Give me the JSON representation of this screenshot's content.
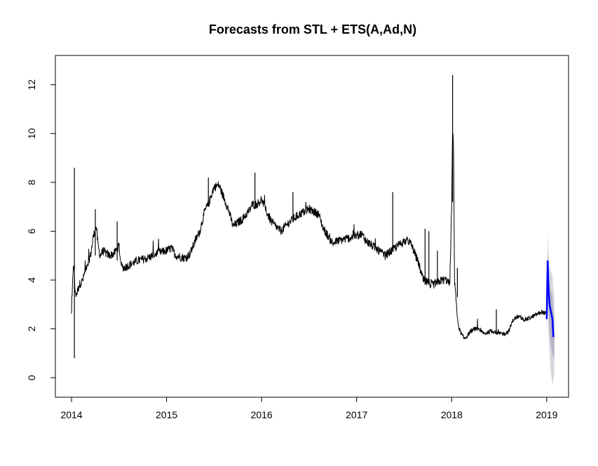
{
  "chart_data": {
    "type": "line",
    "title": "Forecasts from STL +  ETS(A,Ad,N)",
    "xlabel": "",
    "ylabel": "",
    "xlim": [
      2013.83,
      2019.23
    ],
    "ylim": [
      -0.8,
      13.2
    ],
    "x_ticks": [
      2014,
      2015,
      2016,
      2017,
      2018,
      2019
    ],
    "x_tick_labels": [
      "2014",
      "2015",
      "2016",
      "2017",
      "2018",
      "2019"
    ],
    "y_ticks": [
      0,
      2,
      4,
      6,
      8,
      10,
      12
    ],
    "y_tick_labels": [
      "0",
      "2",
      "4",
      "6",
      "8",
      "10",
      "12"
    ],
    "grid": false,
    "legend": "none",
    "colors": {
      "observed": "#000000",
      "forecast": "#0000ff",
      "interval_95": "#d6d6de",
      "interval_80": "#b4b4c6"
    },
    "observed": {
      "x": [
        2014.0,
        2014.02,
        2014.04,
        2014.06,
        2014.08,
        2014.1,
        2014.12,
        2014.15,
        2014.18,
        2014.2,
        2014.23,
        2014.26,
        2014.28,
        2014.3,
        2014.33,
        2014.36,
        2014.4,
        2014.45,
        2014.5,
        2014.52,
        2014.55,
        2014.6,
        2014.7,
        2014.8,
        2014.9,
        2015.0,
        2015.05,
        2015.1,
        2015.2,
        2015.25,
        2015.3,
        2015.35,
        2015.4,
        2015.45,
        2015.48,
        2015.5,
        2015.55,
        2015.6,
        2015.65,
        2015.7,
        2015.8,
        2015.88,
        2015.9,
        2015.95,
        2016.0,
        2016.05,
        2016.1,
        2016.15,
        2016.2,
        2016.3,
        2016.4,
        2016.45,
        2016.5,
        2016.55,
        2016.6,
        2016.65,
        2016.7,
        2016.75,
        2016.8,
        2016.9,
        2017.0,
        2017.05,
        2017.1,
        2017.2,
        2017.3,
        2017.4,
        2017.5,
        2017.55,
        2017.58,
        2017.6,
        2017.65,
        2017.7,
        2017.75,
        2017.8,
        2017.85,
        2017.9,
        2017.95,
        2017.98,
        2018.0,
        2018.01,
        2018.02,
        2018.03,
        2018.04,
        2018.06,
        2018.08,
        2018.1,
        2018.13,
        2018.16,
        2018.2,
        2018.25,
        2018.3,
        2018.35,
        2018.4,
        2018.45,
        2018.5,
        2018.55,
        2018.6,
        2018.62,
        2018.65,
        2018.7,
        2018.75,
        2018.8,
        2018.85,
        2018.9,
        2018.95,
        2019.0
      ],
      "y": [
        2.6,
        4.8,
        3.4,
        3.5,
        3.8,
        3.9,
        4.0,
        4.5,
        4.8,
        5.0,
        5.8,
        6.2,
        5.4,
        5.0,
        5.2,
        5.1,
        5.0,
        5.1,
        5.4,
        4.6,
        4.5,
        4.6,
        4.8,
        4.9,
        5.1,
        5.2,
        5.3,
        5.0,
        4.9,
        5.1,
        5.6,
        6.0,
        6.8,
        7.2,
        7.6,
        7.8,
        7.9,
        7.4,
        6.9,
        6.2,
        6.5,
        6.9,
        7.1,
        7.1,
        7.3,
        6.8,
        6.4,
        6.2,
        6.0,
        6.4,
        6.7,
        6.8,
        6.9,
        6.8,
        6.7,
        6.1,
        5.8,
        5.5,
        5.6,
        5.7,
        5.8,
        5.9,
        5.6,
        5.3,
        5.0,
        5.3,
        5.6,
        5.6,
        5.4,
        5.2,
        4.7,
        4.0,
        3.9,
        3.8,
        3.9,
        4.0,
        4.0,
        3.8,
        7.0,
        10.2,
        9.5,
        4.0,
        3.6,
        2.4,
        2.0,
        1.8,
        1.6,
        1.7,
        1.9,
        2.0,
        1.9,
        1.8,
        1.9,
        1.9,
        1.8,
        1.8,
        1.9,
        2.1,
        2.4,
        2.5,
        2.4,
        2.4,
        2.5,
        2.6,
        2.7,
        2.6
      ]
    },
    "spikes": [
      {
        "x": 2014.03,
        "low": 0.8,
        "high": 8.6
      },
      {
        "x": 2014.25,
        "low": 5.0,
        "high": 6.9
      },
      {
        "x": 2014.48,
        "low": 4.8,
        "high": 6.4
      },
      {
        "x": 2015.44,
        "low": 7.0,
        "high": 8.2
      },
      {
        "x": 2015.93,
        "low": 6.9,
        "high": 8.4
      },
      {
        "x": 2016.33,
        "low": 6.5,
        "high": 7.6
      },
      {
        "x": 2017.38,
        "low": 5.3,
        "high": 7.6
      },
      {
        "x": 2017.72,
        "low": 3.8,
        "high": 6.1
      },
      {
        "x": 2017.76,
        "low": 3.8,
        "high": 6.0
      },
      {
        "x": 2017.85,
        "low": 3.8,
        "high": 5.2
      },
      {
        "x": 2018.01,
        "low": 7.2,
        "high": 12.4
      },
      {
        "x": 2018.06,
        "low": 3.3,
        "high": 4.5
      },
      {
        "x": 2018.47,
        "low": 1.8,
        "high": 2.8
      }
    ],
    "forecast": {
      "x": [
        2019.0,
        2019.01,
        2019.02,
        2019.03,
        2019.04,
        2019.05,
        2019.06,
        2019.07,
        2019.08
      ],
      "mean": [
        2.4,
        4.8,
        3.6,
        3.0,
        2.8,
        2.6,
        2.4,
        1.7,
        1.7
      ],
      "lo80": [
        2.0,
        3.8,
        2.6,
        1.8,
        1.5,
        1.2,
        1.0,
        0.8,
        0.8
      ],
      "hi80": [
        2.8,
        5.2,
        4.2,
        3.8,
        3.6,
        3.5,
        3.3,
        2.8,
        2.6
      ],
      "lo95": [
        1.6,
        3.0,
        1.8,
        1.0,
        0.4,
        0.0,
        -0.3,
        -0.1,
        0.2
      ],
      "hi95": [
        3.2,
        6.0,
        5.0,
        4.6,
        4.4,
        4.3,
        4.2,
        3.6,
        3.4
      ]
    }
  }
}
